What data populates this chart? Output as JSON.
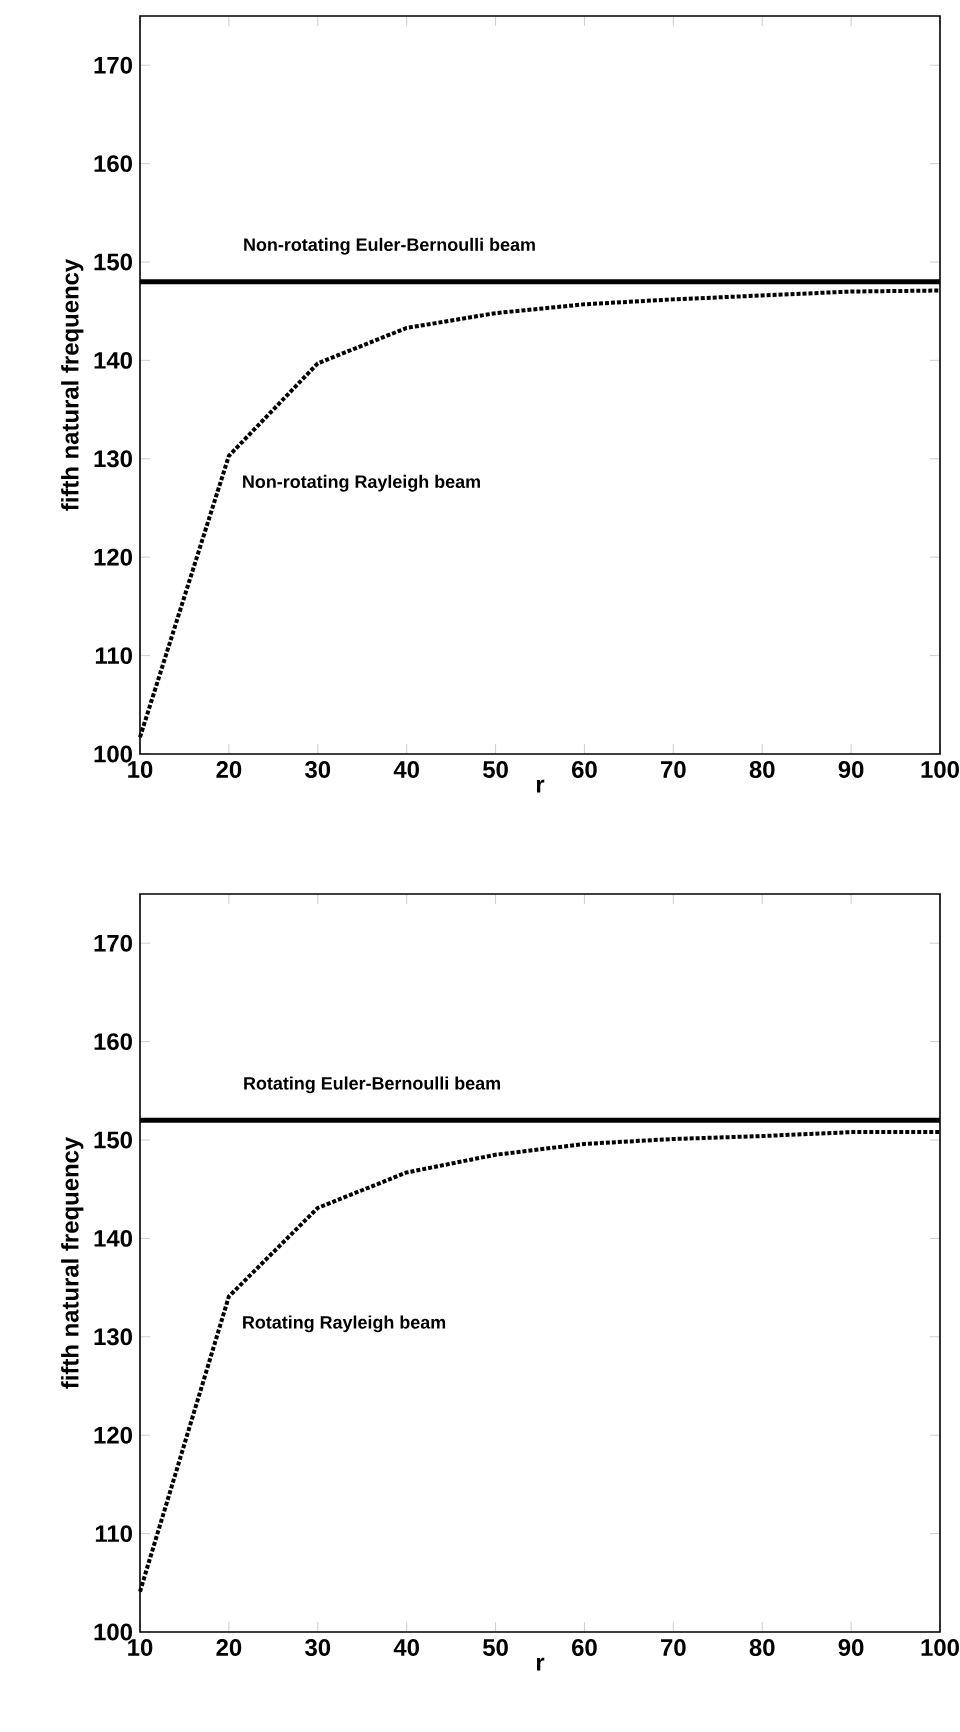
{
  "chart_data": [
    {
      "type": "line",
      "xlabel": "r",
      "ylabel": "fifth natural frequency",
      "xlim": [
        10,
        100
      ],
      "ylim": [
        100,
        175
      ],
      "xticks": [
        10,
        20,
        30,
        40,
        50,
        60,
        70,
        80,
        90,
        100
      ],
      "yticks": [
        100,
        110,
        120,
        130,
        140,
        150,
        160,
        170
      ],
      "series": [
        {
          "name": "Non-rotating Rayleigh beam",
          "color": "#000000",
          "line_style": "dotted",
          "x": [
            10,
            20,
            30,
            40,
            50,
            60,
            70,
            80,
            90,
            100
          ],
          "values": [
            101.7,
            130.3,
            139.7,
            143.3,
            144.8,
            145.7,
            146.2,
            146.6,
            147.0,
            147.1
          ]
        }
      ],
      "ref_lines": [
        {
          "axis": "y",
          "value": 148,
          "label": "Non-rotating Euler-Bernoulli beam",
          "color": "#000000",
          "line_style": "solid"
        }
      ]
    },
    {
      "type": "line",
      "xlabel": "r",
      "ylabel": "fifth natural frequency",
      "xlim": [
        10,
        100
      ],
      "ylim": [
        100,
        175
      ],
      "xticks": [
        10,
        20,
        30,
        40,
        50,
        60,
        70,
        80,
        90,
        100
      ],
      "yticks": [
        100,
        110,
        120,
        130,
        140,
        150,
        160,
        170
      ],
      "series": [
        {
          "name": "Rotating Rayleigh beam",
          "color": "#000000",
          "line_style": "dotted",
          "x": [
            10,
            20,
            30,
            40,
            50,
            60,
            70,
            80,
            90,
            100
          ],
          "values": [
            104.1,
            134.1,
            143.1,
            146.7,
            148.5,
            149.6,
            150.1,
            150.4,
            150.8,
            150.8
          ]
        }
      ],
      "ref_lines": [
        {
          "axis": "y",
          "value": 152,
          "label": "Rotating Euler-Bernoulli beam",
          "color": "#000000",
          "line_style": "solid"
        }
      ]
    }
  ]
}
